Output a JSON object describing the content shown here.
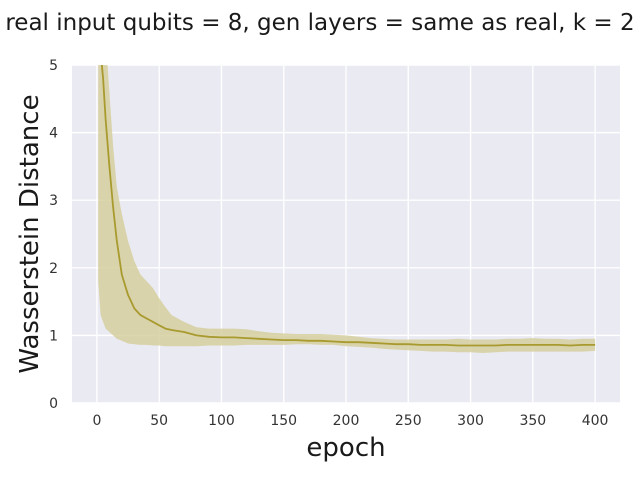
{
  "chart_data": {
    "type": "line",
    "title": "real input qubits = 8, gen layers = same as real, k = 2",
    "xlabel": "epoch",
    "ylabel": "Wasserstein Distance",
    "xlim": [
      -20,
      420
    ],
    "ylim": [
      0,
      5
    ],
    "xticks": [
      0,
      50,
      100,
      150,
      200,
      250,
      300,
      350,
      400
    ],
    "yticks": [
      0,
      1,
      2,
      3,
      4,
      5
    ],
    "grid": true,
    "background": "#eaeaf2",
    "grid_color": "#ffffff",
    "line_color": "#a89a2e",
    "band_color": "#d6cf9f",
    "series": [
      {
        "x": [
          1,
          3,
          5,
          7,
          10,
          13,
          16,
          20,
          25,
          30,
          35,
          40,
          45,
          50,
          55,
          60,
          70,
          80,
          90,
          100,
          110,
          120,
          130,
          140,
          150,
          160,
          170,
          180,
          190,
          200,
          210,
          220,
          230,
          240,
          250,
          260,
          270,
          280,
          290,
          300,
          310,
          320,
          330,
          340,
          350,
          360,
          370,
          380,
          390,
          400
        ],
        "y": [
          5.6,
          5.2,
          4.8,
          4.2,
          3.5,
          2.9,
          2.4,
          1.9,
          1.6,
          1.4,
          1.3,
          1.25,
          1.2,
          1.15,
          1.1,
          1.08,
          1.05,
          1.0,
          0.98,
          0.97,
          0.97,
          0.96,
          0.95,
          0.94,
          0.93,
          0.93,
          0.92,
          0.92,
          0.91,
          0.9,
          0.9,
          0.89,
          0.88,
          0.87,
          0.87,
          0.86,
          0.86,
          0.86,
          0.85,
          0.85,
          0.85,
          0.85,
          0.86,
          0.86,
          0.86,
          0.86,
          0.86,
          0.85,
          0.86,
          0.86
        ],
        "lower": [
          1.8,
          1.3,
          1.2,
          1.1,
          1.05,
          1.0,
          0.95,
          0.92,
          0.88,
          0.87,
          0.86,
          0.86,
          0.85,
          0.85,
          0.84,
          0.84,
          0.84,
          0.84,
          0.85,
          0.85,
          0.85,
          0.86,
          0.86,
          0.86,
          0.86,
          0.87,
          0.87,
          0.86,
          0.86,
          0.84,
          0.83,
          0.82,
          0.8,
          0.79,
          0.78,
          0.77,
          0.76,
          0.76,
          0.75,
          0.75,
          0.74,
          0.75,
          0.76,
          0.76,
          0.76,
          0.76,
          0.76,
          0.76,
          0.76,
          0.77
        ],
        "upper": [
          5.6,
          5.6,
          5.6,
          5.4,
          4.6,
          3.8,
          3.2,
          2.8,
          2.4,
          2.1,
          1.9,
          1.8,
          1.7,
          1.55,
          1.42,
          1.3,
          1.2,
          1.12,
          1.1,
          1.1,
          1.1,
          1.09,
          1.06,
          1.04,
          1.03,
          1.02,
          1.02,
          1.02,
          1.01,
          1.0,
          0.98,
          0.96,
          0.95,
          0.94,
          0.94,
          0.94,
          0.94,
          0.94,
          0.95,
          0.94,
          0.94,
          0.94,
          0.95,
          0.95,
          0.96,
          0.95,
          0.95,
          0.94,
          0.95,
          0.95
        ]
      }
    ]
  }
}
